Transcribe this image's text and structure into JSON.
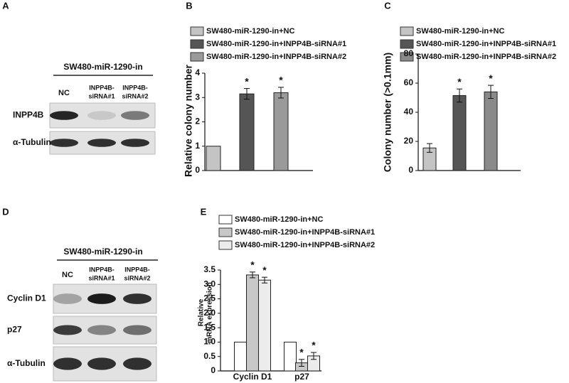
{
  "blots": [
    {
      "panel": "A",
      "header": "SW480-miR-1290-in",
      "lanes": [
        [
          "NC"
        ],
        [
          "INPP4B-",
          "siRNA#1"
        ],
        [
          "INPP4B-",
          "siRNA#2"
        ]
      ],
      "rows": [
        "INPP4B",
        "α-Tubulin"
      ]
    },
    {
      "panel": "D",
      "header": "SW480-miR-1290-in",
      "lanes": [
        [
          "NC"
        ],
        [
          "INPP4B-",
          "siRNA#1"
        ],
        [
          "INPP4B-",
          "siRNA#2"
        ]
      ],
      "rows": [
        "Cyclin D1",
        "p27",
        "α-Tubulin"
      ]
    }
  ],
  "chart_data": [
    {
      "type": "bar",
      "panel": "B",
      "ylabel": [
        "Relative colony number"
      ],
      "ylim": [
        0,
        4
      ],
      "yticks": [
        0,
        1,
        2,
        3,
        4
      ],
      "series": [
        {
          "name": "SW480-miR-1290-in+NC",
          "color": "#c4c4c4",
          "values": [
            1
          ],
          "errors": [
            0
          ],
          "significance": [
            null
          ]
        },
        {
          "name": "SW480-miR-1290-in+INPP4B-siRNA#1",
          "color": "#555555",
          "values": [
            3.15
          ],
          "errors": [
            0.22
          ],
          "significance": [
            "*"
          ]
        },
        {
          "name": "SW480-miR-1290-in+INPP4B-siRNA#2",
          "color": "#9a9a9a",
          "values": [
            3.2
          ],
          "errors": [
            0.22
          ],
          "significance": [
            "*"
          ]
        }
      ]
    },
    {
      "type": "bar",
      "panel": "C",
      "ylabel": [
        "Colony number (>0.1mm)"
      ],
      "ylim": [
        0,
        80
      ],
      "yticks": [
        0,
        20,
        40,
        60,
        80
      ],
      "series": [
        {
          "name": "SW480-miR-1290-in+NC",
          "color": "#c4c4c4",
          "values": [
            15.5
          ],
          "errors": [
            3
          ],
          "significance": [
            null
          ]
        },
        {
          "name": "SW480-miR-1290-in+INPP4B-siRNA#1",
          "color": "#555555",
          "values": [
            51.5
          ],
          "errors": [
            4.5
          ],
          "significance": [
            "*"
          ]
        },
        {
          "name": "SW480-miR-1290-in+INPP4B-siRNA#2",
          "color": "#8a8a8a",
          "values": [
            54
          ],
          "errors": [
            4.5
          ],
          "significance": [
            "*"
          ]
        }
      ]
    },
    {
      "type": "bar",
      "panel": "E",
      "ylabel": [
        "Relative",
        "mRNA expression"
      ],
      "categories": [
        "Cyclin D1",
        "p27"
      ],
      "ylim": [
        0,
        3.5
      ],
      "yticks": [
        0,
        0.5,
        {
          "value": 1,
          "label": "1.0"
        },
        1.5,
        {
          "value": 2,
          "label": "2.0"
        },
        2.5,
        {
          "value": 3,
          "label": "3.0"
        },
        3.5
      ],
      "series": [
        {
          "name": "SW480-miR-1290-in+NC",
          "color": "#ffffff",
          "values": [
            1,
            1
          ],
          "errors": [
            0,
            0
          ],
          "significance": [
            null,
            null
          ]
        },
        {
          "name": "SW480-miR-1290-in+INPP4B-siRNA#1",
          "color": "#c8c8c8",
          "values": [
            3.33,
            0.28
          ],
          "errors": [
            0.1,
            0.12
          ],
          "significance": [
            "*",
            "*"
          ]
        },
        {
          "name": "SW480-miR-1290-in+INPP4B-siRNA#2",
          "color": "#ececec",
          "values": [
            3.15,
            0.52
          ],
          "errors": [
            0.1,
            0.12
          ],
          "significance": [
            "*",
            "*"
          ]
        }
      ]
    }
  ]
}
